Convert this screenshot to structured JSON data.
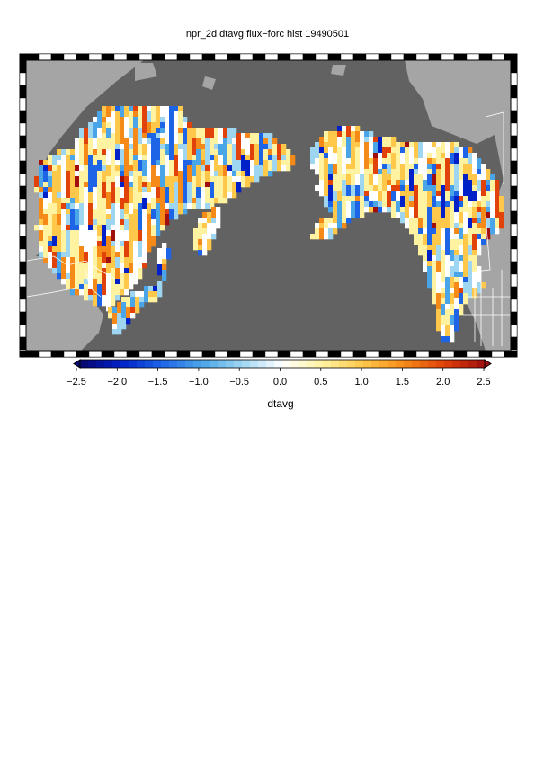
{
  "title": "npr_2d dtavg flux−forc hist 19490501",
  "colorbar": {
    "label": "dtavg",
    "min": -2.5,
    "max": 2.5,
    "ticks": [
      "−2.5",
      "−2.0",
      "−1.5",
      "−1.0",
      "−0.5",
      "0.0",
      "0.5",
      "1.0",
      "1.5",
      "2.0",
      "2.5"
    ],
    "colors": [
      "#08086b",
      "#0020c8",
      "#1e64e6",
      "#4aa4e8",
      "#9ed6f2",
      "#ffffff",
      "#fff2a0",
      "#ffc84a",
      "#f68a18",
      "#e0420a",
      "#a00e0e"
    ]
  },
  "map_colors": {
    "ocean": "#626262",
    "land_outside": "#a5a5a5",
    "border": "#ffffff"
  }
}
